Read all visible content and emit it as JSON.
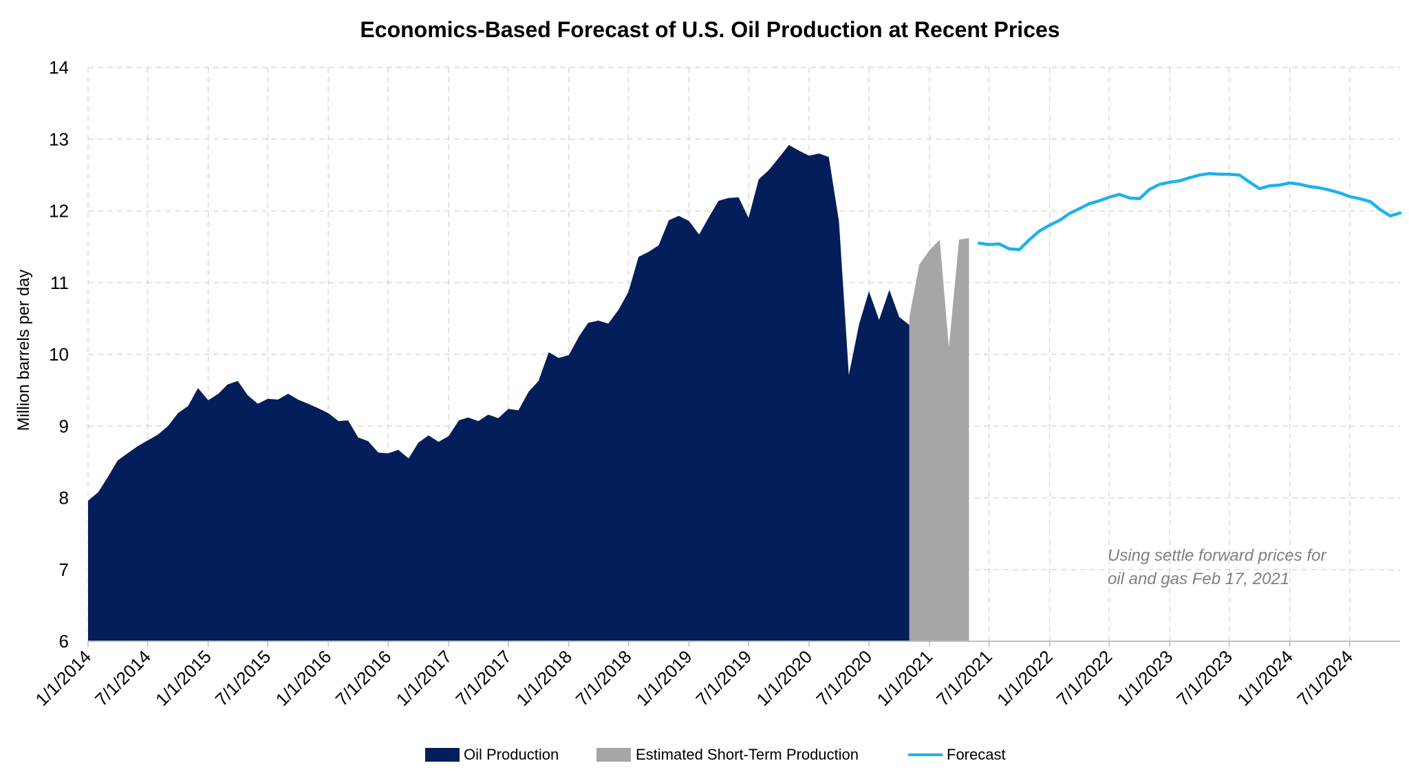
{
  "chart_data": {
    "type": "area",
    "title": "Economics-Based Forecast of U.S. Oil Production at Recent Prices",
    "xlabel": "",
    "ylabel": "Million barrels per day",
    "ylim": [
      6,
      14
    ],
    "xlim": [
      "1/1/2014",
      "12/1/2024"
    ],
    "y_ticks": [
      "6",
      "7",
      "8",
      "9",
      "10",
      "11",
      "12",
      "13",
      "14"
    ],
    "x_ticks": [
      "1/1/2014",
      "7/1/2014",
      "1/1/2015",
      "7/1/2015",
      "1/1/2016",
      "7/1/2016",
      "1/1/2017",
      "7/1/2017",
      "1/1/2018",
      "7/1/2018",
      "1/1/2019",
      "7/1/2019",
      "1/1/2020",
      "7/1/2020",
      "1/1/2021",
      "7/1/2021",
      "1/1/2022",
      "7/1/2022",
      "1/1/2023",
      "7/1/2023",
      "1/1/2024",
      "7/1/2024"
    ],
    "grid": true,
    "legend_position": "bottom",
    "annotation": [
      "Using settle forward prices for",
      "oil and gas Feb 17, 2021"
    ],
    "colors": {
      "oil": "#041e5b",
      "estimated": "#a6a6a6",
      "forecast": "#1fb1ec",
      "grid": "#d9d9d9",
      "annotation": "#7f7f7f"
    },
    "series": [
      {
        "name": "Oil Production",
        "kind": "area",
        "x": [
          "2014-01-01",
          "2014-02-01",
          "2014-03-01",
          "2014-04-01",
          "2014-05-01",
          "2014-06-01",
          "2014-07-01",
          "2014-08-01",
          "2014-09-01",
          "2014-10-01",
          "2014-11-01",
          "2014-12-01",
          "2015-01-01",
          "2015-02-01",
          "2015-03-01",
          "2015-04-01",
          "2015-05-01",
          "2015-06-01",
          "2015-07-01",
          "2015-08-01",
          "2015-09-01",
          "2015-10-01",
          "2015-11-01",
          "2015-12-01",
          "2016-01-01",
          "2016-02-01",
          "2016-03-01",
          "2016-04-01",
          "2016-05-01",
          "2016-06-01",
          "2016-07-01",
          "2016-08-01",
          "2016-09-01",
          "2016-10-01",
          "2016-11-01",
          "2016-12-01",
          "2017-01-01",
          "2017-02-01",
          "2017-03-01",
          "2017-04-01",
          "2017-05-01",
          "2017-06-01",
          "2017-07-01",
          "2017-08-01",
          "2017-09-01",
          "2017-10-01",
          "2017-11-01",
          "2017-12-01",
          "2018-01-01",
          "2018-02-01",
          "2018-03-01",
          "2018-04-01",
          "2018-05-01",
          "2018-06-01",
          "2018-07-01",
          "2018-08-01",
          "2018-09-01",
          "2018-10-01",
          "2018-11-01",
          "2018-12-01",
          "2019-01-01",
          "2019-02-01",
          "2019-03-01",
          "2019-04-01",
          "2019-05-01",
          "2019-06-01",
          "2019-07-01",
          "2019-08-01",
          "2019-09-01",
          "2019-10-01",
          "2019-11-01",
          "2019-12-01",
          "2020-01-01",
          "2020-02-01",
          "2020-03-01",
          "2020-04-01",
          "2020-05-01",
          "2020-06-01",
          "2020-07-01",
          "2020-08-01",
          "2020-09-01",
          "2020-10-01",
          "2020-11-01"
        ],
        "values": [
          7.96,
          8.08,
          8.28,
          8.52,
          8.62,
          8.72,
          8.8,
          8.88,
          9.0,
          9.18,
          9.28,
          9.53,
          9.36,
          9.45,
          9.58,
          9.63,
          9.43,
          9.31,
          9.38,
          9.37,
          9.45,
          9.37,
          9.31,
          9.25,
          9.18,
          9.07,
          9.08,
          8.84,
          8.79,
          8.63,
          8.62,
          8.67,
          8.55,
          8.77,
          8.87,
          8.78,
          8.86,
          9.08,
          9.12,
          9.07,
          9.16,
          9.11,
          9.24,
          9.22,
          9.48,
          9.63,
          10.03,
          9.95,
          9.99,
          10.25,
          10.44,
          10.47,
          10.43,
          10.62,
          10.87,
          11.36,
          11.43,
          11.52,
          11.87,
          11.93,
          11.86,
          11.67,
          11.9,
          12.14,
          12.18,
          12.19,
          11.9,
          12.44,
          12.57,
          12.74,
          12.92,
          12.84,
          12.77,
          12.8,
          12.75,
          11.85,
          9.71,
          10.42,
          10.88,
          10.48,
          10.9,
          10.52,
          10.41
        ]
      },
      {
        "name": "Estimated Short-Term Production",
        "kind": "area",
        "x": [
          "2020-11-01",
          "2020-12-01",
          "2021-01-01",
          "2021-02-01",
          "2021-03-01",
          "2021-04-01",
          "2021-05-01"
        ],
        "values": [
          10.52,
          11.25,
          11.45,
          11.6,
          10.1,
          11.6,
          11.62
        ]
      },
      {
        "name": "Forecast",
        "kind": "line",
        "x": [
          "2021-06-01",
          "2021-07-01",
          "2021-08-01",
          "2021-09-01",
          "2021-10-01",
          "2021-11-01",
          "2021-12-01",
          "2022-01-01",
          "2022-02-01",
          "2022-03-01",
          "2022-04-01",
          "2022-05-01",
          "2022-06-01",
          "2022-07-01",
          "2022-08-01",
          "2022-09-01",
          "2022-10-01",
          "2022-11-01",
          "2022-12-01",
          "2023-01-01",
          "2023-02-01",
          "2023-03-01",
          "2023-04-01",
          "2023-05-01",
          "2023-06-01",
          "2023-07-01",
          "2023-08-01",
          "2023-09-01",
          "2023-10-01",
          "2023-11-01",
          "2023-12-01",
          "2024-01-01",
          "2024-02-01",
          "2024-03-01",
          "2024-04-01",
          "2024-05-01",
          "2024-06-01",
          "2024-07-01",
          "2024-08-01",
          "2024-09-01",
          "2024-10-01",
          "2024-11-01",
          "2024-12-01"
        ],
        "values": [
          11.55,
          11.53,
          11.54,
          11.47,
          11.46,
          11.6,
          11.72,
          11.8,
          11.87,
          11.96,
          12.03,
          12.1,
          12.14,
          12.19,
          12.23,
          12.18,
          12.17,
          12.3,
          12.37,
          12.4,
          12.42,
          12.46,
          12.5,
          12.52,
          12.51,
          12.51,
          12.5,
          12.4,
          12.31,
          12.35,
          12.36,
          12.39,
          12.37,
          12.34,
          12.32,
          12.29,
          12.25,
          12.2,
          12.17,
          12.13,
          12.02,
          11.93,
          11.97
        ]
      }
    ]
  }
}
